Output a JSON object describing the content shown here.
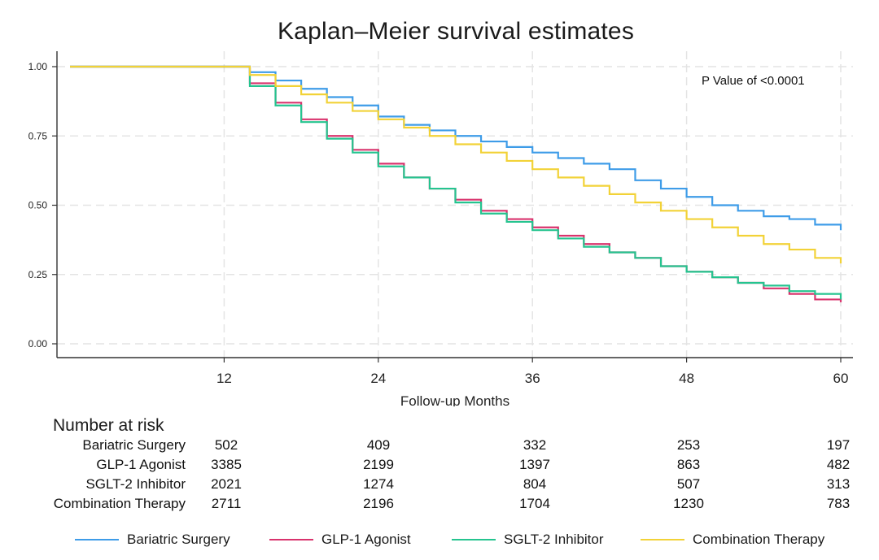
{
  "chart_data": {
    "type": "line",
    "step": true,
    "title": "Kaplan–Meier survival estimates",
    "xlabel": "Follow-up Months",
    "ylabel": "",
    "xlim": [
      0,
      60
    ],
    "ylim": [
      0,
      1
    ],
    "xticks": [
      "12",
      "24",
      "36",
      "48",
      "60"
    ],
    "yticks": [
      "0.00",
      "0.25",
      "0.50",
      "0.75",
      "1.00"
    ],
    "grid": true,
    "annotation": "P Value of <0.0001",
    "legend_position": "bottom",
    "series": [
      {
        "name": "Bariatric Surgery",
        "color": "#3e9ce8",
        "x": [
          0,
          12.7,
          14,
          16,
          18,
          20,
          22,
          24,
          26,
          28,
          30,
          32,
          34,
          36,
          38,
          40,
          42,
          44,
          46,
          48,
          50,
          52,
          54,
          56,
          58,
          60
        ],
        "y": [
          1.0,
          1.0,
          0.98,
          0.95,
          0.92,
          0.89,
          0.86,
          0.82,
          0.79,
          0.77,
          0.75,
          0.73,
          0.71,
          0.69,
          0.67,
          0.65,
          0.63,
          0.59,
          0.56,
          0.53,
          0.5,
          0.48,
          0.46,
          0.45,
          0.43,
          0.41
        ]
      },
      {
        "name": "GLP-1 Agonist",
        "color": "#d9336d",
        "x": [
          0,
          12.7,
          14,
          16,
          18,
          20,
          22,
          24,
          26,
          28,
          30,
          32,
          34,
          36,
          38,
          40,
          42,
          44,
          46,
          48,
          50,
          52,
          54,
          56,
          58,
          60
        ],
        "y": [
          1.0,
          1.0,
          0.94,
          0.87,
          0.81,
          0.75,
          0.7,
          0.65,
          0.6,
          0.56,
          0.52,
          0.48,
          0.45,
          0.42,
          0.39,
          0.36,
          0.33,
          0.31,
          0.28,
          0.26,
          0.24,
          0.22,
          0.2,
          0.18,
          0.16,
          0.15
        ]
      },
      {
        "name": "SGLT-2 Inhibitor",
        "color": "#25c48f",
        "x": [
          0,
          12.7,
          14,
          16,
          18,
          20,
          22,
          24,
          26,
          28,
          30,
          32,
          34,
          36,
          38,
          40,
          42,
          44,
          46,
          48,
          50,
          52,
          54,
          56,
          58,
          60
        ],
        "y": [
          1.0,
          1.0,
          0.93,
          0.86,
          0.8,
          0.74,
          0.69,
          0.64,
          0.6,
          0.56,
          0.51,
          0.47,
          0.44,
          0.41,
          0.38,
          0.35,
          0.33,
          0.31,
          0.28,
          0.26,
          0.24,
          0.22,
          0.21,
          0.19,
          0.18,
          0.16
        ]
      },
      {
        "name": "Combination Therapy",
        "color": "#f2d237",
        "x": [
          0,
          12.7,
          14,
          16,
          18,
          20,
          22,
          24,
          26,
          28,
          30,
          32,
          34,
          36,
          38,
          40,
          42,
          44,
          46,
          48,
          50,
          52,
          54,
          56,
          58,
          60
        ],
        "y": [
          1.0,
          1.0,
          0.97,
          0.93,
          0.9,
          0.87,
          0.84,
          0.81,
          0.78,
          0.75,
          0.72,
          0.69,
          0.66,
          0.63,
          0.6,
          0.57,
          0.54,
          0.51,
          0.48,
          0.45,
          0.42,
          0.39,
          0.36,
          0.34,
          0.31,
          0.29
        ]
      }
    ],
    "risk_table": {
      "title": "Number at risk",
      "times": [
        "12",
        "24",
        "36",
        "48",
        "60"
      ],
      "rows": [
        {
          "label": "Bariatric Surgery",
          "values": [
            "502",
            "409",
            "332",
            "253",
            "197"
          ]
        },
        {
          "label": "GLP-1 Agonist",
          "values": [
            "3385",
            "2199",
            "1397",
            "863",
            "482"
          ]
        },
        {
          "label": "SGLT-2 Inhibitor",
          "values": [
            "2021",
            "1274",
            "804",
            "507",
            "313"
          ]
        },
        {
          "label": "Combination Therapy",
          "values": [
            "2711",
            "2196",
            "1704",
            "1230",
            "783"
          ]
        }
      ]
    }
  }
}
